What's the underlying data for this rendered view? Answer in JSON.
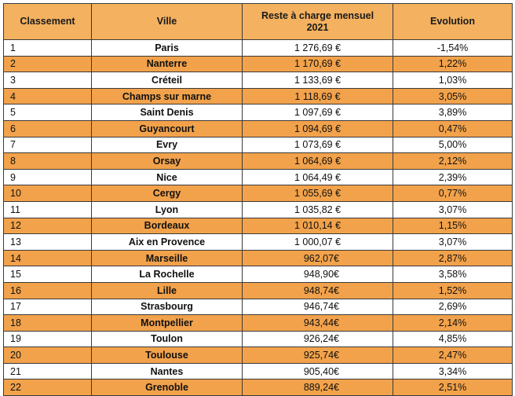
{
  "headers": {
    "rank": "Classement",
    "city": "Ville",
    "amount_line1": "Reste à charge mensuel",
    "amount_line2": "2021",
    "evolution": "Evolution"
  },
  "rows": [
    {
      "rank": "1",
      "city": "Paris",
      "amount": "1 276,69 €",
      "evolution": "-1,54%"
    },
    {
      "rank": "2",
      "city": "Nanterre",
      "amount": "1 170,69 €",
      "evolution": "1,22%"
    },
    {
      "rank": "3",
      "city": "Créteil",
      "amount": "1 133,69 €",
      "evolution": "1,03%"
    },
    {
      "rank": "4",
      "city": "Champs sur marne",
      "amount": "1 118,69 €",
      "evolution": "3,05%"
    },
    {
      "rank": "5",
      "city": "Saint Denis",
      "amount": "1 097,69 €",
      "evolution": "3,89%"
    },
    {
      "rank": "6",
      "city": "Guyancourt",
      "amount": "1 094,69 €",
      "evolution": "0,47%"
    },
    {
      "rank": "7",
      "city": "Evry",
      "amount": "1 073,69 €",
      "evolution": "5,00%"
    },
    {
      "rank": "8",
      "city": "Orsay",
      "amount": "1 064,69 €",
      "evolution": "2,12%"
    },
    {
      "rank": "9",
      "city": "Nice",
      "amount": "1 064,49 €",
      "evolution": "2,39%"
    },
    {
      "rank": "10",
      "city": "Cergy",
      "amount": "1 055,69 €",
      "evolution": "0,77%"
    },
    {
      "rank": "11",
      "city": "Lyon",
      "amount": "1 035,82 €",
      "evolution": "3,07%"
    },
    {
      "rank": "12",
      "city": "Bordeaux",
      "amount": "1 010,14 €",
      "evolution": "1,15%"
    },
    {
      "rank": "13",
      "city": "Aix en Provence",
      "amount": "1 000,07 €",
      "evolution": "3,07%"
    },
    {
      "rank": "14",
      "city": "Marseille",
      "amount": "962,07€",
      "evolution": "2,87%"
    },
    {
      "rank": "15",
      "city": "La Rochelle",
      "amount": "948,90€",
      "evolution": "3,58%"
    },
    {
      "rank": "16",
      "city": "Lille",
      "amount": "948,74€",
      "evolution": "1,52%"
    },
    {
      "rank": "17",
      "city": "Strasbourg",
      "amount": "946,74€",
      "evolution": "2,69%"
    },
    {
      "rank": "18",
      "city": "Montpellier",
      "amount": "943,44€",
      "evolution": "2,14%"
    },
    {
      "rank": "19",
      "city": "Toulon",
      "amount": "926,24€",
      "evolution": "4,85%"
    },
    {
      "rank": "20",
      "city": "Toulouse",
      "amount": "925,74€",
      "evolution": "2,47%"
    },
    {
      "rank": "21",
      "city": "Nantes",
      "amount": "905,40€",
      "evolution": "3,34%"
    },
    {
      "rank": "22",
      "city": "Grenoble",
      "amount": "889,24€",
      "evolution": "2,51%"
    }
  ],
  "colors": {
    "header_bg": "#f4b15f",
    "alt_row_bg": "#f2a24b",
    "row_bg": "#ffffff",
    "border": "#3a3a3a"
  }
}
